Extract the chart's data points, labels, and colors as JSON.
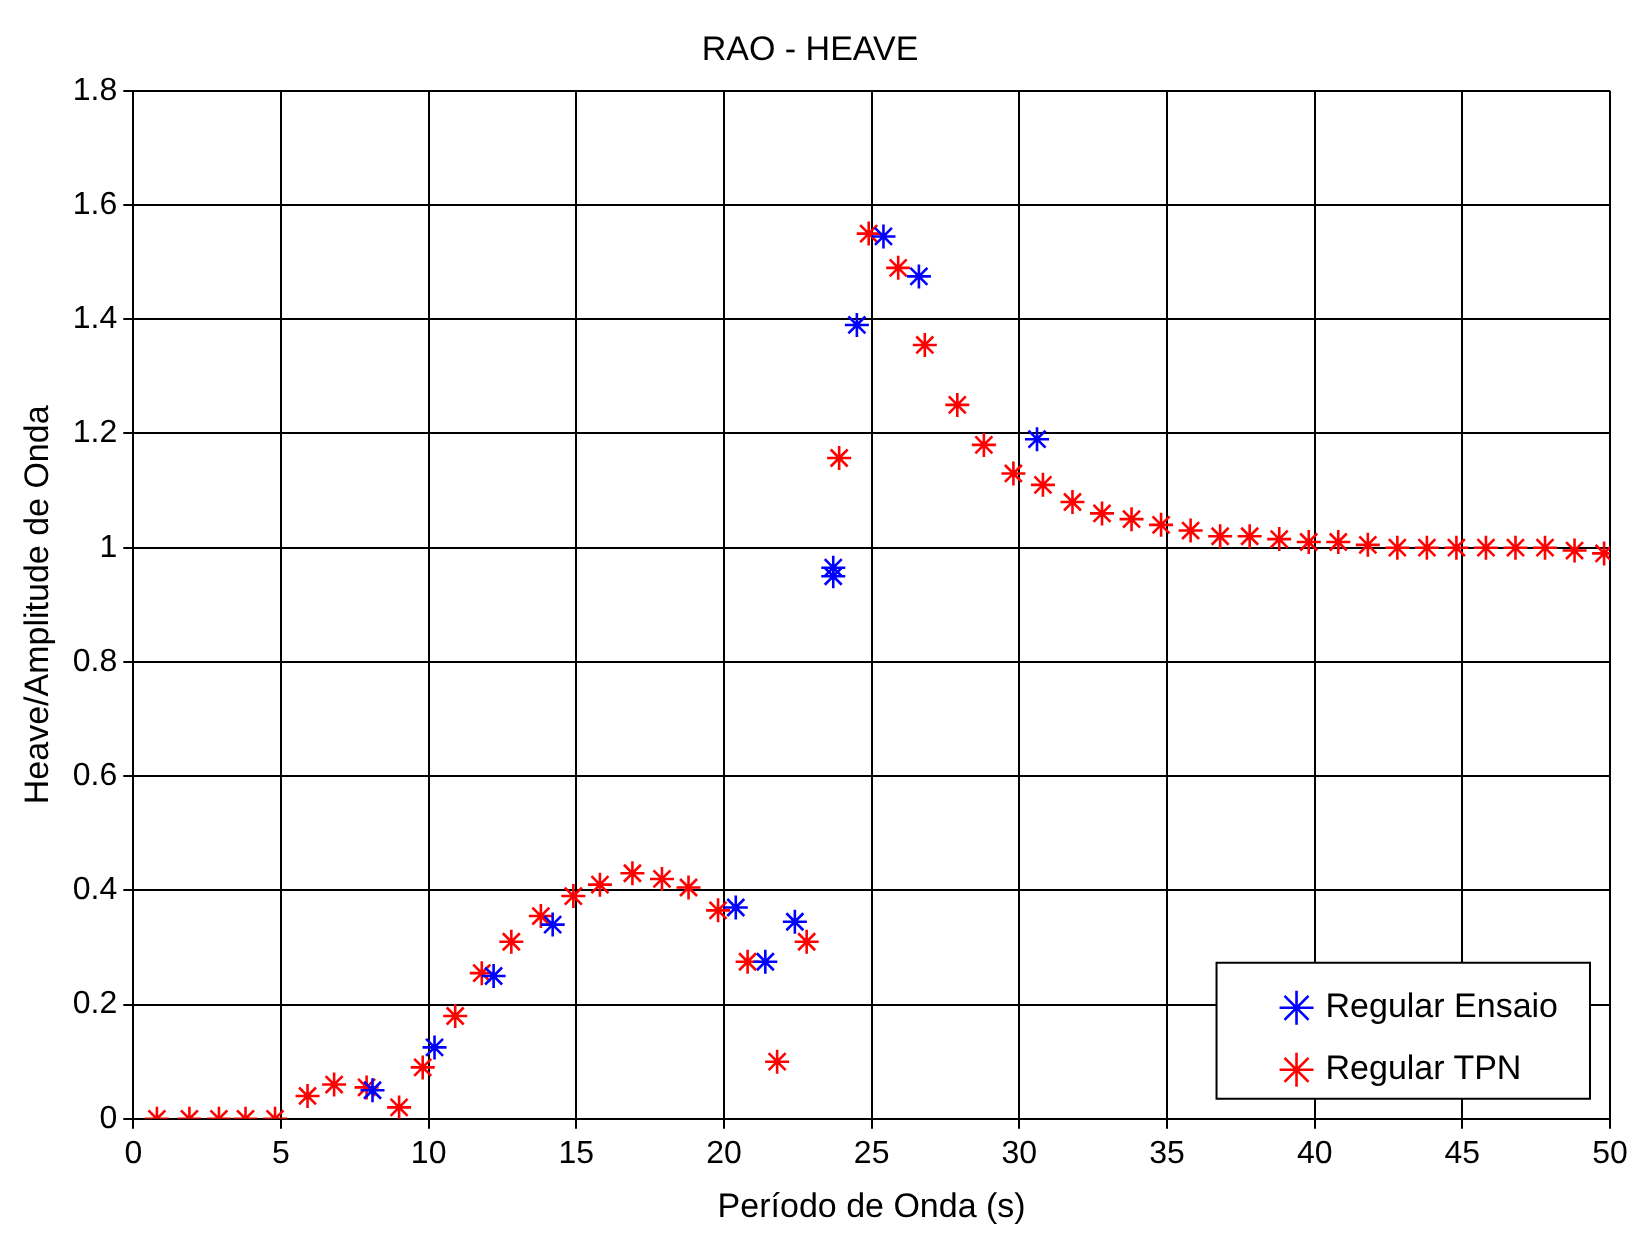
{
  "chart_data": {
    "type": "scatter",
    "title": "RAO - HEAVE",
    "xlabel": "Período de Onda (s)",
    "ylabel": "Heave/Amplitude de Onda",
    "xlim": [
      0,
      50
    ],
    "xticks": [
      0,
      5,
      10,
      15,
      20,
      25,
      30,
      35,
      40,
      45,
      50
    ],
    "ylim": [
      0,
      1.8
    ],
    "yticks": [
      0,
      0.2,
      0.4,
      0.6,
      0.8,
      1,
      1.2,
      1.4,
      1.6,
      1.8
    ],
    "grid": true,
    "legend": "bottom right",
    "marker": "cross",
    "series": [
      {
        "name": "Regular Ensaio",
        "color": "#0000ff",
        "x": [
          8.1,
          10.2,
          12.2,
          14.2,
          20.4,
          21.4,
          22.4,
          23.7,
          23.7,
          24.5,
          25.4,
          26.6,
          30.6
        ],
        "values": [
          0.05,
          0.125,
          0.25,
          0.34,
          0.37,
          0.275,
          0.345,
          0.965,
          0.95,
          1.39,
          1.545,
          1.475,
          1.19
        ]
      },
      {
        "name": "Regular TPN",
        "color": "#ff0000",
        "x": [
          0.8,
          1.9,
          2.9,
          3.8,
          4.8,
          5.9,
          6.8,
          7.9,
          9.0,
          9.8,
          10.9,
          11.8,
          12.8,
          13.8,
          14.9,
          15.8,
          16.9,
          17.9,
          18.8,
          19.8,
          20.8,
          21.8,
          22.8,
          23.9,
          24.9,
          25.9,
          26.8,
          27.9,
          28.8,
          29.8,
          30.8,
          31.8,
          32.8,
          33.8,
          34.8,
          35.8,
          36.8,
          37.8,
          38.8,
          39.8,
          40.8,
          41.8,
          42.8,
          43.8,
          44.8,
          45.8,
          46.8,
          47.8,
          48.8,
          49.8
        ],
        "values": [
          0,
          0,
          0,
          0,
          0,
          0.04,
          0.06,
          0.055,
          0.02,
          0.09,
          0.18,
          0.255,
          0.31,
          0.355,
          0.39,
          0.41,
          0.43,
          0.42,
          0.405,
          0.365,
          0.275,
          0.1,
          0.31,
          1.157,
          1.55,
          1.49,
          1.355,
          1.25,
          1.18,
          1.13,
          1.11,
          1.08,
          1.06,
          1.05,
          1.04,
          1.03,
          1.02,
          1.02,
          1.015,
          1.01,
          1.01,
          1.005,
          1.0,
          1.0,
          1.0,
          1.0,
          1.0,
          1.0,
          0.995,
          0.99
        ]
      }
    ]
  }
}
